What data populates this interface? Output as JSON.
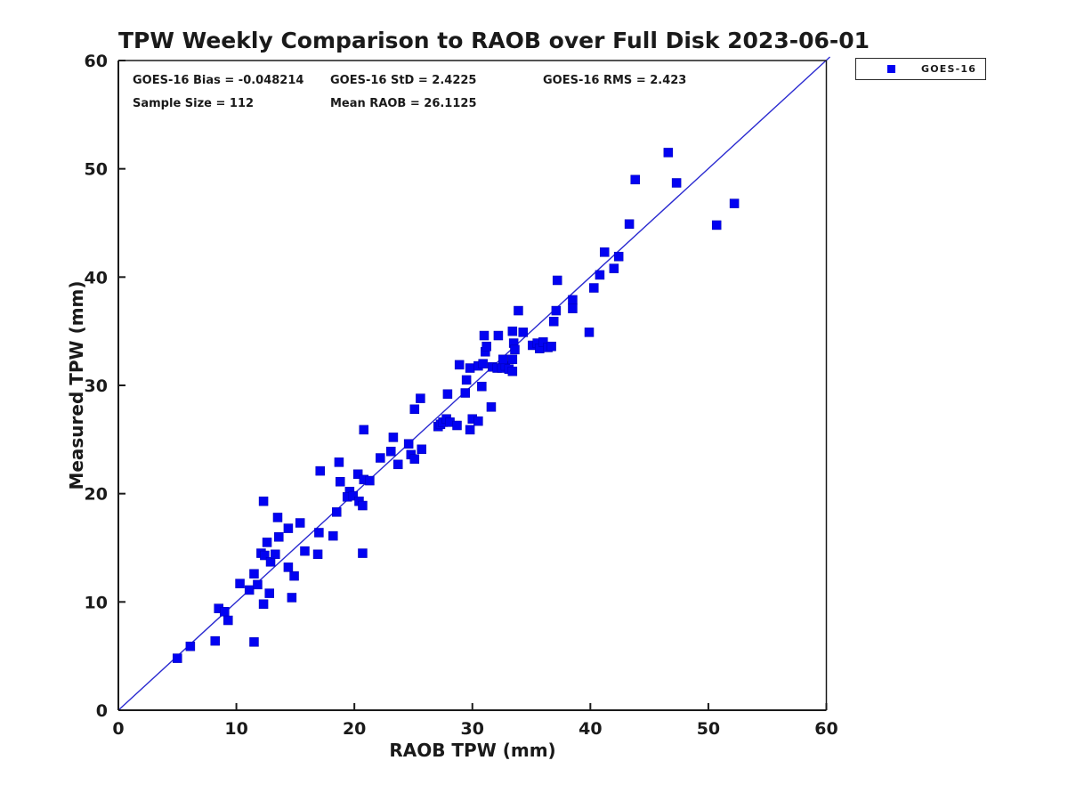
{
  "chart_data": {
    "type": "scatter",
    "title": "TPW Weekly Comparison to RAOB over Full Disk 2023-06-01",
    "xlabel": "RAOB TPW (mm)",
    "ylabel": "Measured TPW (mm)",
    "xlim": [
      0,
      60
    ],
    "ylim": [
      0,
      60
    ],
    "xticks": [
      0,
      10,
      20,
      30,
      40,
      50,
      60
    ],
    "yticks": [
      0,
      10,
      20,
      30,
      40,
      50,
      60
    ],
    "grid": false,
    "legend_position": "top-right-outside",
    "annotations": [
      "GOES-16 Bias = -0.048214",
      "GOES-16 StD = 2.4225",
      "GOES-16 RMS = 2.423",
      "Sample Size = 112",
      "Mean RAOB = 26.1125"
    ],
    "stats_values": {
      "bias": -0.048214,
      "std": 2.4225,
      "rms": 2.423,
      "sample_size": 112,
      "mean_raob": 26.1125
    },
    "ref_line": {
      "type": "y=x",
      "from": [
        0,
        0
      ],
      "to": [
        60,
        60
      ],
      "color": "#2a2ad0"
    },
    "axis_color": "#1a1a1a",
    "series": [
      {
        "name": "GOES-16",
        "marker": "square",
        "color": "#0202f2",
        "points": [
          [
            5.0,
            4.8
          ],
          [
            6.1,
            5.9
          ],
          [
            8.2,
            6.4
          ],
          [
            11.5,
            6.3
          ],
          [
            8.5,
            9.4
          ],
          [
            9.0,
            9.1
          ],
          [
            9.3,
            8.3
          ],
          [
            10.3,
            11.7
          ],
          [
            11.1,
            11.1
          ],
          [
            11.8,
            11.6
          ],
          [
            11.5,
            12.6
          ],
          [
            12.8,
            10.8
          ],
          [
            12.3,
            9.8
          ],
          [
            14.7,
            10.4
          ],
          [
            14.9,
            12.4
          ],
          [
            12.1,
            14.5
          ],
          [
            12.4,
            14.3
          ],
          [
            12.9,
            13.7
          ],
          [
            13.3,
            14.4
          ],
          [
            12.6,
            15.5
          ],
          [
            13.6,
            16.0
          ],
          [
            14.4,
            13.2
          ],
          [
            15.8,
            14.7
          ],
          [
            16.9,
            14.4
          ],
          [
            20.7,
            14.5
          ],
          [
            12.3,
            19.3
          ],
          [
            13.5,
            17.8
          ],
          [
            14.4,
            16.8
          ],
          [
            15.4,
            17.3
          ],
          [
            17.0,
            16.4
          ],
          [
            18.2,
            16.1
          ],
          [
            18.5,
            18.3
          ],
          [
            17.1,
            22.1
          ],
          [
            18.7,
            22.9
          ],
          [
            18.8,
            21.1
          ],
          [
            19.6,
            20.2
          ],
          [
            19.4,
            19.7
          ],
          [
            19.9,
            19.8
          ],
          [
            20.4,
            19.3
          ],
          [
            20.7,
            18.9
          ],
          [
            20.3,
            21.8
          ],
          [
            20.8,
            21.3
          ],
          [
            21.3,
            21.2
          ],
          [
            20.8,
            25.9
          ],
          [
            22.2,
            23.3
          ],
          [
            23.1,
            23.9
          ],
          [
            23.3,
            25.2
          ],
          [
            23.7,
            22.7
          ],
          [
            24.6,
            24.6
          ],
          [
            24.8,
            23.6
          ],
          [
            25.1,
            23.2
          ],
          [
            25.7,
            24.1
          ],
          [
            27.1,
            26.2
          ],
          [
            27.3,
            26.4
          ],
          [
            27.5,
            26.6
          ],
          [
            27.8,
            26.9
          ],
          [
            28.1,
            26.6
          ],
          [
            28.7,
            26.3
          ],
          [
            29.8,
            25.9
          ],
          [
            30.0,
            26.9
          ],
          [
            30.5,
            26.7
          ],
          [
            25.6,
            28.8
          ],
          [
            25.1,
            27.8
          ],
          [
            27.9,
            29.2
          ],
          [
            29.4,
            29.3
          ],
          [
            29.5,
            30.5
          ],
          [
            30.8,
            29.9
          ],
          [
            31.6,
            28.0
          ],
          [
            28.9,
            31.9
          ],
          [
            29.8,
            31.6
          ],
          [
            30.5,
            31.8
          ],
          [
            30.9,
            32.0
          ],
          [
            31.7,
            31.7
          ],
          [
            32.1,
            31.6
          ],
          [
            32.5,
            31.6
          ],
          [
            32.8,
            31.8
          ],
          [
            33.1,
            31.5
          ],
          [
            33.4,
            31.3
          ],
          [
            32.6,
            32.4
          ],
          [
            33.4,
            32.4
          ],
          [
            31.1,
            33.1
          ],
          [
            31.2,
            33.6
          ],
          [
            33.5,
            33.9
          ],
          [
            33.6,
            33.3
          ],
          [
            31.0,
            34.6
          ],
          [
            32.2,
            34.6
          ],
          [
            33.4,
            35.0
          ],
          [
            34.3,
            34.9
          ],
          [
            33.9,
            36.9
          ],
          [
            36.9,
            35.9
          ],
          [
            35.1,
            33.7
          ],
          [
            35.5,
            33.9
          ],
          [
            35.7,
            33.4
          ],
          [
            36.0,
            34.0
          ],
          [
            36.4,
            33.5
          ],
          [
            36.7,
            33.6
          ],
          [
            37.1,
            36.9
          ],
          [
            37.2,
            39.7
          ],
          [
            38.5,
            37.9
          ],
          [
            38.5,
            37.1
          ],
          [
            39.9,
            34.9
          ],
          [
            40.3,
            39.0
          ],
          [
            40.8,
            40.2
          ],
          [
            41.2,
            42.3
          ],
          [
            42.0,
            40.8
          ],
          [
            42.4,
            41.9
          ],
          [
            43.3,
            44.9
          ],
          [
            50.7,
            44.8
          ],
          [
            43.8,
            49.0
          ],
          [
            46.6,
            51.5
          ],
          [
            47.3,
            48.7
          ],
          [
            52.2,
            46.8
          ]
        ]
      }
    ]
  }
}
